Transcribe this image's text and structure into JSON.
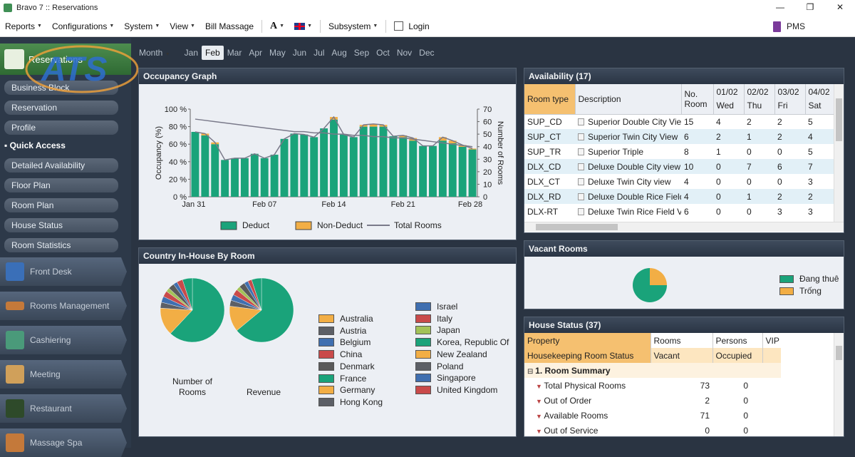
{
  "window": {
    "title": "Bravo 7 :: Reservations",
    "minimize": "—",
    "restore": "❐",
    "close": "✕"
  },
  "menu": {
    "items": [
      "Reports",
      "Configurations",
      "System",
      "View",
      "Bill Massage"
    ],
    "font_label": "A",
    "subsystem": "Subsystem",
    "login": "Login",
    "pms": "PMS"
  },
  "sidebar": {
    "header": "Reservations",
    "items": [
      "Business Block",
      "Reservation",
      "Profile"
    ],
    "quick_access": "Quick Access",
    "quick_items": [
      "Detailed Availability",
      "Floor Plan",
      "Room Plan",
      "House Status",
      "Room Statistics"
    ],
    "modules": [
      "Front Desk",
      "Rooms Management",
      "Cashiering",
      "Meeting",
      "Restaurant",
      "Massage Spa"
    ]
  },
  "watermark": "ATS",
  "month_tabs": {
    "label": "Month",
    "months": [
      "Jan",
      "Feb",
      "Mar",
      "Apr",
      "May",
      "Jun",
      "Jul",
      "Aug",
      "Sep",
      "Oct",
      "Nov",
      "Dec"
    ],
    "active": "Feb"
  },
  "occupancy": {
    "title": "Occupancy Graph",
    "chart_data": {
      "type": "bar",
      "ylabel": "Occupancy (%)",
      "y2label": "Number of Rooms",
      "y_ticks": [
        "100 %",
        "80 %",
        "60 %",
        "40 %",
        "20 %",
        "0 %"
      ],
      "y2_ticks": [
        "70",
        "60",
        "50",
        "40",
        "30",
        "20",
        "10",
        "0"
      ],
      "x_ticks": [
        "Jan 31",
        "Feb 07",
        "Feb 14",
        "Feb 21",
        "Feb 28"
      ],
      "ylim": [
        0,
        100
      ],
      "y2lim": [
        0,
        70
      ],
      "deduct": [
        74,
        70,
        60,
        42,
        44,
        44,
        49,
        44,
        48,
        66,
        72,
        71,
        68,
        78,
        88,
        71,
        68,
        80,
        80,
        80,
        69,
        68,
        64,
        58,
        58,
        64,
        61,
        57,
        54
      ],
      "non_deduct": [
        0,
        2,
        2,
        0,
        0,
        0,
        0,
        0,
        0,
        0,
        0,
        0,
        0,
        0,
        3,
        0,
        0,
        2,
        3,
        2,
        0,
        2,
        3,
        0,
        0,
        4,
        3,
        2,
        1
      ],
      "total_rooms": [
        62,
        61,
        60,
        59,
        58,
        57,
        56,
        55,
        54,
        53,
        52,
        52,
        51,
        51,
        50,
        50,
        49,
        49,
        48,
        48,
        47,
        47,
        46,
        45,
        44,
        43,
        42,
        41,
        40
      ],
      "legend": [
        "Deduct",
        "Non-Deduct",
        "Total Rooms"
      ],
      "colors": {
        "deduct": "#1aa37a",
        "non_deduct": "#f2ae45",
        "line": "#7a7a8a"
      }
    }
  },
  "country": {
    "title": "Country In-House By Room",
    "pie_labels": [
      "Number of\nRooms",
      "Revenue"
    ],
    "legend_left": [
      {
        "name": "Australia",
        "color": "#f2ae45"
      },
      {
        "name": "Austria",
        "color": "#5c5f66"
      },
      {
        "name": "Belgium",
        "color": "#3f6fb0"
      },
      {
        "name": "China",
        "color": "#c94a4a"
      },
      {
        "name": "Denmark",
        "color": "#5a5a5a"
      },
      {
        "name": "France",
        "color": "#1aa37a"
      },
      {
        "name": "Germany",
        "color": "#f2ae45"
      },
      {
        "name": "Hong Kong",
        "color": "#5c5f66"
      }
    ],
    "legend_right": [
      {
        "name": "Israel",
        "color": "#3f6fb0"
      },
      {
        "name": "Italy",
        "color": "#c94a4a"
      },
      {
        "name": "Japan",
        "color": "#a3c258"
      },
      {
        "name": "Korea, Republic Of",
        "color": "#1aa37a"
      },
      {
        "name": "New Zealand",
        "color": "#f2ae45"
      },
      {
        "name": "Poland",
        "color": "#5c5f66"
      },
      {
        "name": "Singapore",
        "color": "#3f6fb0"
      },
      {
        "name": "United Kingdom",
        "color": "#c94a4a"
      }
    ]
  },
  "availability": {
    "title": "Availability (17)",
    "headers": {
      "room_type": "Room type",
      "description": "Description",
      "no_room": "No. Room",
      "dates": [
        [
          "01/02",
          "Wed"
        ],
        [
          "02/02",
          "Thu"
        ],
        [
          "03/02",
          "Fri"
        ],
        [
          "04/02",
          "Sat"
        ]
      ]
    },
    "rows": [
      {
        "type": "SUP_CD",
        "desc": "Superior Double City View",
        "no": "15",
        "d": [
          "4",
          "2",
          "2",
          "5"
        ]
      },
      {
        "type": "SUP_CT",
        "desc": "Superior Twin City View",
        "no": "6",
        "d": [
          "2",
          "1",
          "2",
          "4"
        ]
      },
      {
        "type": "SUP_TR",
        "desc": "Superior Triple",
        "no": "8",
        "d": [
          "1",
          "0",
          "0",
          "5"
        ]
      },
      {
        "type": "DLX_CD",
        "desc": "Deluxe Double City view",
        "no": "10",
        "d": [
          "0",
          "7",
          "6",
          "7"
        ]
      },
      {
        "type": "DLX_CT",
        "desc": "Deluxe Twin City view",
        "no": "4",
        "d": [
          "0",
          "0",
          "0",
          "3"
        ]
      },
      {
        "type": "DLX_RD",
        "desc": "Deluxe Double Rice Field",
        "no": "4",
        "d": [
          "0",
          "1",
          "2",
          "2"
        ]
      },
      {
        "type": "DLX-RT",
        "desc": "Deluxe Twin Rice Field Vie",
        "no": "6",
        "d": [
          "0",
          "0",
          "3",
          "3"
        ]
      }
    ]
  },
  "vacant": {
    "title": "Vacant Rooms",
    "legend": [
      {
        "name": "Đang thuê",
        "color": "#1aa37a"
      },
      {
        "name": "Trống",
        "color": "#f2ae45"
      }
    ],
    "occupied_fraction": 0.75
  },
  "house_status": {
    "title": "House Status (37)",
    "headers": [
      "Property",
      "Rooms",
      "Persons",
      "VIP"
    ],
    "subheaders": [
      "Housekeeping Room Status",
      "Vacant",
      "Occupied",
      ""
    ],
    "group": "1. Room Summary",
    "rows": [
      {
        "label": "Total Physical Rooms",
        "rooms": "73",
        "persons": "0"
      },
      {
        "label": "Out of Order",
        "rooms": "2",
        "persons": "0"
      },
      {
        "label": "Available Rooms",
        "rooms": "71",
        "persons": "0"
      },
      {
        "label": "Out of Service",
        "rooms": "0",
        "persons": "0"
      }
    ]
  }
}
